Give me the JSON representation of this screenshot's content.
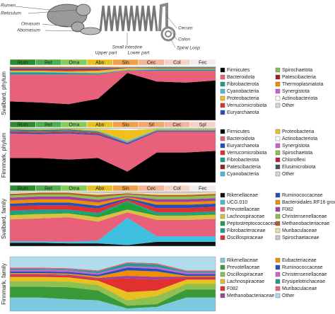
{
  "illustration": {
    "labels": [
      "Rumen",
      "Reticulum",
      "Omasum",
      "Abomasum",
      "Small Intestine",
      "Upper part",
      "Lower part",
      "Cecum",
      "Colon",
      "Spiral Loop"
    ]
  },
  "chart_data": [
    {
      "type": "area",
      "ylabel": "Svalbard, phylum",
      "ylim": [
        0,
        100
      ],
      "categories": [
        "Rum",
        "Ret",
        "Oma",
        "Abo",
        "Sin",
        "Cec",
        "Col",
        "Fec"
      ],
      "category_colors": [
        "#2e8b2e",
        "#4fae4f",
        "#86cc5a",
        "#e8c020",
        "#f0a048",
        "#f2b49a",
        "#f6d2c4",
        "#f2ecec"
      ],
      "series": [
        {
          "name": "Firmicutes",
          "color": "#000000",
          "values": [
            35,
            33,
            30,
            40,
            88,
            72,
            70,
            74
          ]
        },
        {
          "name": "Bacteroidota",
          "color": "#e8607a",
          "values": [
            50,
            52,
            55,
            45,
            5,
            20,
            22,
            18
          ]
        },
        {
          "name": "Fibrobacterota",
          "color": "#1a9e8e",
          "values": [
            4,
            4,
            3,
            2,
            0,
            2,
            2,
            2
          ]
        },
        {
          "name": "Cyanobacteria",
          "color": "#3fc0e0",
          "values": [
            1,
            1,
            1,
            1,
            1,
            1,
            1,
            1
          ]
        },
        {
          "name": "Proteobacteria",
          "color": "#f0c020",
          "values": [
            2,
            2,
            2,
            4,
            3,
            1,
            1,
            1
          ]
        },
        {
          "name": "Verrucomicrobiota",
          "color": "#e03030",
          "values": [
            2,
            2,
            3,
            2,
            0,
            1,
            1,
            1
          ]
        },
        {
          "name": "Euryarchaeota",
          "color": "#2050c0",
          "values": [
            2,
            2,
            2,
            2,
            1,
            1,
            1,
            1
          ]
        },
        {
          "name": "Spirochaetota",
          "color": "#90c050",
          "values": [
            1,
            1,
            1,
            1,
            0,
            1,
            1,
            1
          ]
        },
        {
          "name": "Patescibacteria",
          "color": "#a02020",
          "values": [
            1,
            1,
            1,
            1,
            0,
            0,
            0,
            0
          ]
        },
        {
          "name": "Thermoplasmatota",
          "color": "#f09000",
          "values": [
            1,
            1,
            1,
            1,
            1,
            0,
            0,
            0
          ]
        },
        {
          "name": "Synergistota",
          "color": "#d060d0",
          "values": [
            0,
            0,
            0,
            0,
            0,
            0,
            0,
            0
          ]
        },
        {
          "name": "Actinobacteriota",
          "color": "#ffffff",
          "values": [
            0,
            0,
            0,
            0,
            1,
            0,
            0,
            0
          ]
        },
        {
          "name": "Other",
          "color": "#d8d8d8",
          "values": [
            1,
            1,
            1,
            1,
            0,
            1,
            1,
            1
          ]
        }
      ]
    },
    {
      "type": "area",
      "ylabel": "Finnmark, phylum",
      "ylim": [
        0,
        100
      ],
      "categories": [
        "Rum",
        "Ret",
        "Oma",
        "Abo",
        "Siu",
        "Sil",
        "Cec",
        "Spl"
      ],
      "category_colors": [
        "#2e8b2e",
        "#4fae4f",
        "#86cc5a",
        "#e8c020",
        "#f0a048",
        "#f0a870",
        "#f2b49a",
        "#f6d2c4"
      ],
      "series": [
        {
          "name": "Firmicutes",
          "color": "#000000",
          "values": [
            45,
            45,
            42,
            45,
            20,
            55,
            55,
            58
          ]
        },
        {
          "name": "Bacteroidota",
          "color": "#e8607a",
          "values": [
            45,
            44,
            48,
            42,
            50,
            38,
            38,
            35
          ]
        },
        {
          "name": "Euryarchaeota",
          "color": "#2050c0",
          "values": [
            2,
            2,
            2,
            2,
            2,
            1,
            1,
            1
          ]
        },
        {
          "name": "Verrucomicrobiota",
          "color": "#e03030",
          "values": [
            2,
            2,
            2,
            2,
            1,
            1,
            1,
            1
          ]
        },
        {
          "name": "Fibrobacterota",
          "color": "#1a9e8e",
          "values": [
            2,
            2,
            2,
            1,
            0,
            1,
            1,
            1
          ]
        },
        {
          "name": "Patescibacteria",
          "color": "#a02020",
          "values": [
            1,
            1,
            1,
            1,
            0,
            0,
            0,
            0
          ]
        },
        {
          "name": "Cyanobacteria",
          "color": "#3fc0e0",
          "values": [
            1,
            1,
            1,
            2,
            3,
            1,
            1,
            1
          ]
        },
        {
          "name": "Proteobacteria",
          "color": "#f0c020",
          "values": [
            1,
            1,
            1,
            3,
            20,
            1,
            1,
            1
          ]
        },
        {
          "name": "Actinobacteriota",
          "color": "#ffffff",
          "values": [
            0,
            0,
            0,
            1,
            2,
            0,
            0,
            0
          ]
        },
        {
          "name": "Synergistota",
          "color": "#d060d0",
          "values": [
            0,
            0,
            0,
            0,
            0,
            0,
            0,
            0
          ]
        },
        {
          "name": "Spirochaetota",
          "color": "#90c050",
          "values": [
            1,
            1,
            1,
            1,
            0,
            1,
            1,
            1
          ]
        },
        {
          "name": "Chloroflexi",
          "color": "#c02040",
          "values": [
            0,
            0,
            0,
            0,
            0,
            0,
            0,
            0
          ]
        },
        {
          "name": "Elusimicrobiota",
          "color": "#505050",
          "values": [
            0,
            0,
            0,
            0,
            0,
            0,
            0,
            0
          ]
        },
        {
          "name": "Other",
          "color": "#d8d8d8",
          "values": [
            0,
            1,
            0,
            0,
            2,
            1,
            1,
            1
          ]
        }
      ]
    },
    {
      "type": "area",
      "ylabel": "Svalbard, family",
      "ylim": [
        0,
        100
      ],
      "categories": [
        "Rum",
        "Ret",
        "Oma",
        "Abo",
        "Sin",
        "Cec",
        "Col",
        "Fec"
      ],
      "category_colors": [
        "#2e8b2e",
        "#4fae4f",
        "#86cc5a",
        "#e8c020",
        "#f0a048",
        "#f2b49a",
        "#f6d2c4",
        "#f2ecec"
      ],
      "series": [
        {
          "name": "Rikenellaceae",
          "color": "#111111",
          "values": [
            6,
            6,
            5,
            5,
            2,
            8,
            8,
            8
          ]
        },
        {
          "name": "UCG.010",
          "color": "#3fc0e0",
          "values": [
            3,
            3,
            3,
            5,
            50,
            10,
            10,
            10
          ]
        },
        {
          "name": "Prevotellaceae",
          "color": "#e8607a",
          "values": [
            40,
            42,
            45,
            35,
            10,
            30,
            30,
            32
          ]
        },
        {
          "name": "Lachnospiraceae",
          "color": "#d8c040",
          "values": [
            8,
            8,
            7,
            8,
            5,
            8,
            8,
            8
          ]
        },
        {
          "name": "Peptostreptococcaceae",
          "color": "#20a040",
          "values": [
            2,
            2,
            2,
            4,
            15,
            2,
            2,
            2
          ]
        },
        {
          "name": "Fibrobacteraceae",
          "color": "#1a9e8e",
          "values": [
            6,
            6,
            5,
            4,
            1,
            4,
            4,
            4
          ]
        },
        {
          "name": "Oscillospiraceae",
          "color": "#e03030",
          "values": [
            8,
            8,
            8,
            8,
            3,
            8,
            8,
            8
          ]
        },
        {
          "name": "Ruminococcaceae",
          "color": "#2050c0",
          "values": [
            5,
            5,
            5,
            5,
            2,
            6,
            6,
            6
          ]
        },
        {
          "name": "Bacteroidales.RF16 group",
          "color": "#f09000",
          "values": [
            6,
            6,
            6,
            6,
            2,
            5,
            5,
            5
          ]
        },
        {
          "name": "F082",
          "color": "#a040a0",
          "values": [
            5,
            5,
            5,
            5,
            2,
            5,
            5,
            5
          ]
        },
        {
          "name": "Christensenellaceae",
          "color": "#90c050",
          "values": [
            4,
            4,
            4,
            5,
            3,
            5,
            5,
            5
          ]
        },
        {
          "name": "Methanobacteriaceae",
          "color": "#b06030",
          "values": [
            3,
            3,
            3,
            4,
            2,
            3,
            3,
            3
          ]
        },
        {
          "name": "Muribaculaceae",
          "color": "#f0e0a0",
          "values": [
            2,
            2,
            2,
            3,
            1,
            3,
            3,
            3
          ]
        },
        {
          "name": "Spirochaetaceae",
          "color": "#c8c8c8",
          "values": [
            2,
            0,
            0,
            3,
            2,
            3,
            3,
            1
          ]
        }
      ]
    },
    {
      "type": "area",
      "ylabel": "Finnmark, family",
      "ylim": [
        0,
        100
      ],
      "categories": [
        null,
        null,
        null,
        null,
        null,
        null,
        null,
        null
      ],
      "series": [
        {
          "name": "Rikenellaceae",
          "color": "#7ec8e0",
          "values": [
            25,
            25,
            22,
            20,
            5,
            8,
            25,
            25
          ]
        },
        {
          "name": "Prevotellaceae",
          "color": "#3a9a3a",
          "values": [
            20,
            20,
            22,
            18,
            5,
            5,
            15,
            15
          ]
        },
        {
          "name": "Oscillospiraceae",
          "color": "#90c050",
          "values": [
            10,
            10,
            10,
            10,
            10,
            15,
            10,
            10
          ]
        },
        {
          "name": "Lachnospiraceae",
          "color": "#e8c020",
          "values": [
            8,
            8,
            8,
            8,
            15,
            10,
            8,
            8
          ]
        },
        {
          "name": "F082",
          "color": "#e03030",
          "values": [
            3,
            3,
            3,
            3,
            25,
            20,
            3,
            3
          ]
        },
        {
          "name": "Methanobacteriaceae",
          "color": "#a040a0",
          "values": [
            2,
            2,
            2,
            2,
            5,
            5,
            2,
            2
          ]
        },
        {
          "name": "Eubacteriaceae",
          "color": "#f09000",
          "values": [
            2,
            2,
            2,
            3,
            10,
            10,
            2,
            2
          ]
        },
        {
          "name": "Ruminococcaceae",
          "color": "#2050c0",
          "values": [
            3,
            3,
            3,
            3,
            5,
            5,
            3,
            3
          ]
        },
        {
          "name": "Christensenellaceae",
          "color": "#d060d0",
          "values": [
            3,
            3,
            3,
            3,
            3,
            3,
            3,
            3
          ]
        },
        {
          "name": "Erysipelotrichaceae",
          "color": "#1a9e8e",
          "values": [
            2,
            2,
            2,
            3,
            5,
            5,
            2,
            2
          ]
        },
        {
          "name": "Muribaculaceae",
          "color": "#e8607a",
          "values": [
            2,
            2,
            2,
            2,
            2,
            2,
            2,
            2
          ]
        },
        {
          "name": "Other",
          "color": "#b0dcec",
          "values": [
            20,
            20,
            21,
            25,
            10,
            12,
            25,
            25
          ]
        }
      ]
    }
  ]
}
